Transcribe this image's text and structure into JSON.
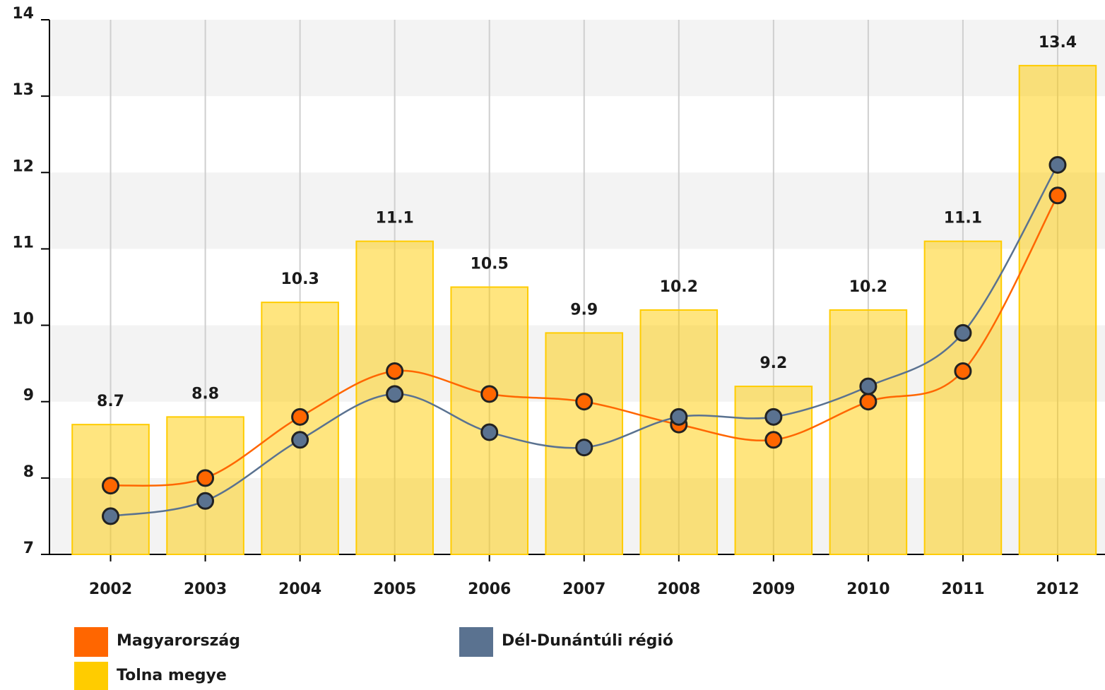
{
  "chart_data": {
    "type": "bar",
    "categories": [
      "2002",
      "2003",
      "2004",
      "2005",
      "2006",
      "2007",
      "2008",
      "2009",
      "2010",
      "2011",
      "2012"
    ],
    "series": [
      {
        "name": "Magyarország",
        "type": "line",
        "color": "#ff6600",
        "values": [
          7.9,
          8.0,
          8.8,
          9.4,
          9.1,
          9.0,
          8.7,
          8.5,
          9.0,
          9.4,
          11.7
        ]
      },
      {
        "name": "Dél-Dunántúli régió",
        "type": "line",
        "color": "#5a7290",
        "values": [
          7.5,
          7.7,
          8.5,
          9.1,
          8.6,
          8.4,
          8.8,
          8.8,
          9.2,
          9.9,
          12.1
        ]
      },
      {
        "name": "Tolna megye",
        "type": "bar",
        "color": "#ffcc00",
        "values": [
          8.7,
          8.8,
          10.3,
          11.1,
          10.5,
          9.9,
          10.2,
          9.2,
          10.2,
          11.1,
          13.4
        ]
      }
    ],
    "ylim": [
      7,
      14
    ],
    "yticks": [
      7,
      8,
      9,
      10,
      11,
      12,
      13,
      14
    ],
    "grid": true
  }
}
